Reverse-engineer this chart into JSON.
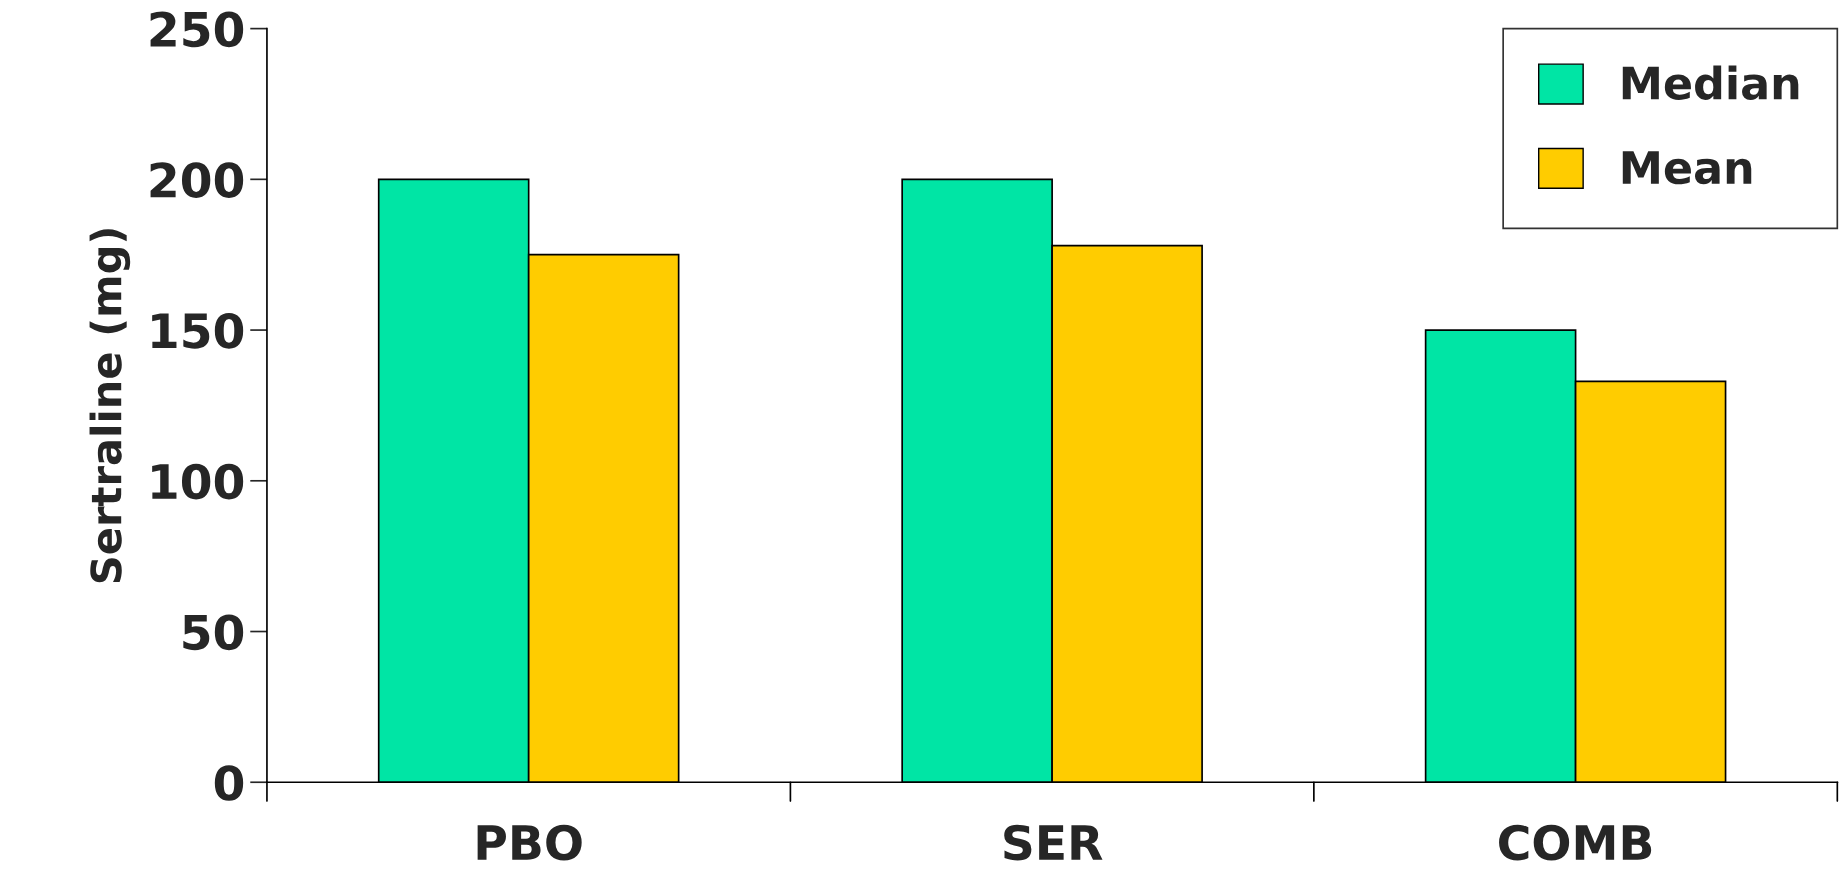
{
  "chart_data": {
    "type": "bar",
    "ylabel": "Sertraline (mg)",
    "categories": [
      "PBO",
      "SER",
      "COMB"
    ],
    "series": [
      {
        "name": "Median",
        "color": "#00e5a5",
        "values": [
          200,
          200,
          150
        ]
      },
      {
        "name": "Mean",
        "color": "#ffcc00",
        "values": [
          175,
          178,
          133
        ]
      }
    ],
    "ylim": [
      0,
      250
    ],
    "yticks": [
      0,
      50,
      100,
      150,
      200,
      250
    ],
    "grid": false,
    "legend": "top right"
  }
}
